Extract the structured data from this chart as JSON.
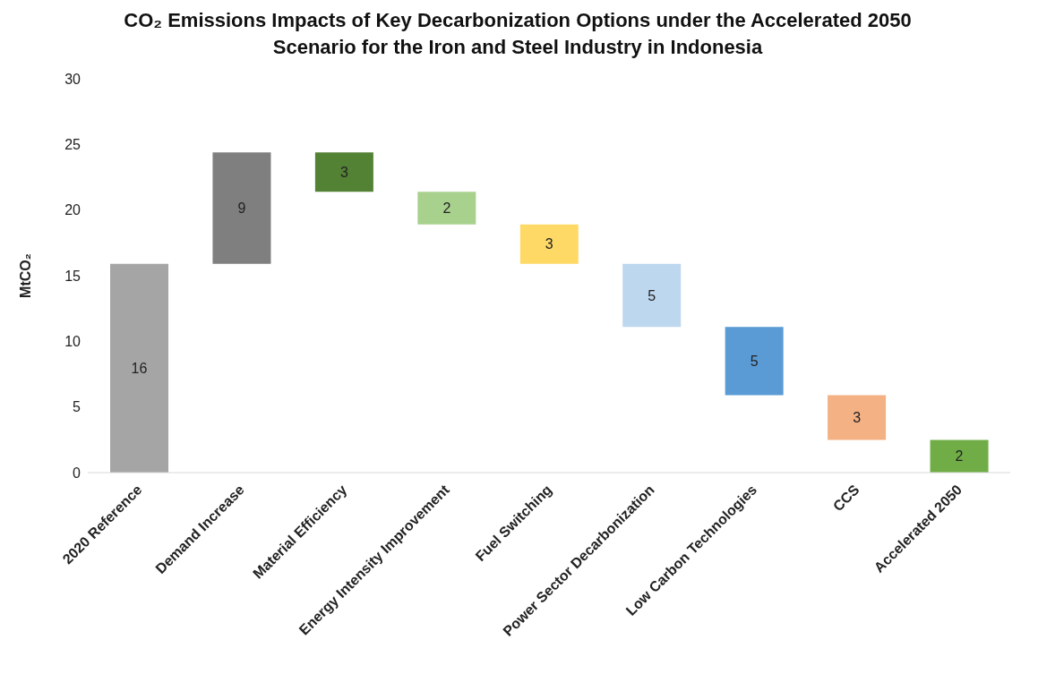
{
  "chart_data": {
    "type": "bar",
    "title": "CO₂ Emissions Impacts of Key Decarbonization Options under the Accelerated 2050 Scenario for the Iron and Steel Industry in Indonesia",
    "ylabel": "MtCO₂",
    "categories": [
      "2020 Reference",
      "Demand Increase",
      "Material Efficiency",
      "Energy Intensity Improvement",
      "Fuel Switching",
      "Power Sector Decarbonization",
      "Low Carbon Technologies",
      "CCS",
      "Accelerated 2050"
    ],
    "values": [
      15.9,
      8.5,
      3.0,
      2.49,
      3.0,
      4.8,
      5.2,
      3.41,
      2.49
    ],
    "base": [
      0,
      15.9,
      21.4,
      18.91,
      15.9,
      11.1,
      5.9,
      2.49,
      0
    ],
    "colors": [
      "#a5a5a5",
      "#7f7f7f",
      "#548235",
      "#a9d18e",
      "#ffd966",
      "#bdd7ee",
      "#5b9bd5",
      "#f4b183",
      "#70ad47"
    ],
    "value_labels": [
      "16",
      "9",
      "3",
      "2",
      "3",
      "5",
      "5",
      "3",
      "2"
    ],
    "ylim": [
      0,
      30
    ],
    "yticks": [
      0,
      5,
      10,
      15,
      20,
      25,
      30
    ],
    "grid": false,
    "legend": false
  }
}
